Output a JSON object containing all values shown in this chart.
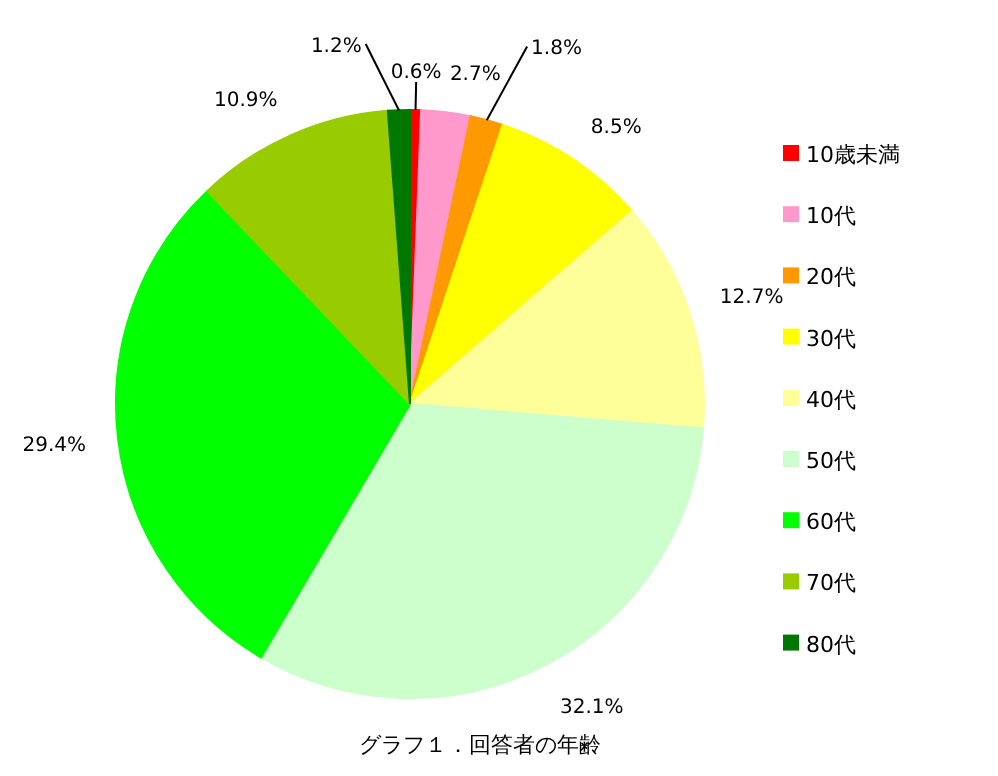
{
  "chart_data": {
    "type": "pie",
    "title": "グラフ１．回答者の年齢",
    "categories": [
      "10歳未満",
      "10代",
      "20代",
      "30代",
      "40代",
      "50代",
      "60代",
      "70代",
      "80代"
    ],
    "values": [
      0.6,
      2.7,
      1.8,
      8.5,
      12.7,
      32.1,
      29.4,
      10.9,
      1.2
    ],
    "colors": [
      "#ff0000",
      "#ff99cc",
      "#ff9900",
      "#ffff00",
      "#ffff99",
      "#ccffcc",
      "#00ff00",
      "#99cc00",
      "#007700"
    ],
    "value_labels": [
      "0.6%",
      "2.7%",
      "1.8%",
      "8.5%",
      "12.7%",
      "32.1%",
      "29.4%",
      "10.9%",
      "1.2%"
    ],
    "legend": "right"
  }
}
